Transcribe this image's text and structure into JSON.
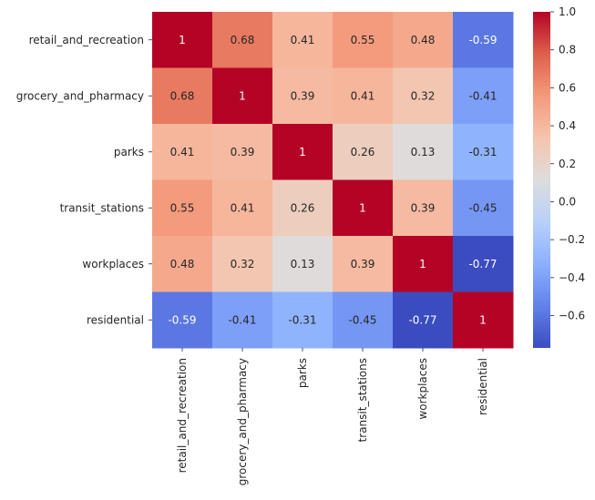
{
  "chart_data": {
    "type": "heatmap",
    "title": "",
    "xlabel": "",
    "ylabel": "",
    "rows": [
      "retail_and_recreation",
      "grocery_and_pharmacy",
      "parks",
      "transit_stations",
      "workplaces",
      "residential"
    ],
    "columns": [
      "retail_and_recreation",
      "grocery_and_pharmacy",
      "parks",
      "transit_stations",
      "workplaces",
      "residential"
    ],
    "values": [
      [
        1,
        0.68,
        0.41,
        0.55,
        0.48,
        -0.59
      ],
      [
        0.68,
        1,
        0.39,
        0.41,
        0.32,
        -0.41
      ],
      [
        0.41,
        0.39,
        1,
        0.26,
        0.13,
        -0.31
      ],
      [
        0.55,
        0.41,
        0.26,
        1,
        0.39,
        -0.45
      ],
      [
        0.48,
        0.32,
        0.13,
        0.39,
        1,
        -0.77
      ],
      [
        -0.59,
        -0.41,
        -0.31,
        -0.45,
        -0.77,
        1
      ]
    ],
    "annotations": [
      [
        "1",
        "0.68",
        "0.41",
        "0.55",
        "0.48",
        "-0.59"
      ],
      [
        "0.68",
        "1",
        "0.39",
        "0.41",
        "0.32",
        "-0.41"
      ],
      [
        "0.41",
        "0.39",
        "1",
        "0.26",
        "0.13",
        "-0.31"
      ],
      [
        "0.55",
        "0.41",
        "0.26",
        "1",
        "0.39",
        "-0.45"
      ],
      [
        "0.48",
        "0.32",
        "0.13",
        "0.39",
        "1",
        "-0.77"
      ],
      [
        "-0.59",
        "-0.41",
        "-0.31",
        "-0.45",
        "-0.77",
        "1"
      ]
    ],
    "colormap": "coolwarm",
    "colorbar": {
      "min": -0.77,
      "max": 1.0,
      "ticks": [
        1.0,
        0.8,
        0.6,
        0.4,
        0.2,
        0.0,
        -0.2,
        -0.4,
        -0.6
      ],
      "tick_labels": [
        "1.0",
        "0.8",
        "0.6",
        "0.4",
        "0.2",
        "0.0",
        "−0.2",
        "−0.4",
        "−0.6"
      ]
    }
  }
}
